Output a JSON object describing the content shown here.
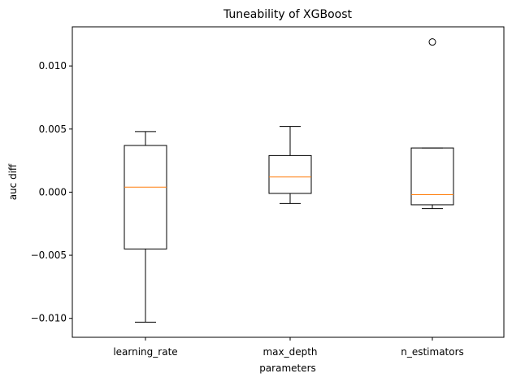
{
  "chart_data": {
    "type": "boxplot",
    "title": "Tuneability of XGBoost",
    "xlabel": "parameters",
    "ylabel": "auc diff",
    "ylim": [
      -0.0115,
      0.0131
    ],
    "yticks": [
      -0.01,
      -0.005,
      0.0,
      0.005,
      0.01
    ],
    "ytick_labels": [
      "−0.010",
      "−0.005",
      "0.000",
      "0.005",
      "0.010"
    ],
    "grid": false,
    "categories": [
      "learning_rate",
      "max_depth",
      "n_estimators"
    ],
    "boxes": [
      {
        "name": "learning_rate",
        "whisker_low": -0.0103,
        "q1": -0.0045,
        "median": 0.0004,
        "q3": 0.0037,
        "whisker_high": 0.0048,
        "outliers": []
      },
      {
        "name": "max_depth",
        "whisker_low": -0.0009,
        "q1": -0.0001,
        "median": 0.0012,
        "q3": 0.0029,
        "whisker_high": 0.0052,
        "outliers": []
      },
      {
        "name": "n_estimators",
        "whisker_low": -0.0013,
        "q1": -0.001,
        "median": -0.0002,
        "q3": 0.0035,
        "whisker_high": 0.0035,
        "outliers": [
          0.0119
        ]
      }
    ],
    "colors": {
      "box": "#000000",
      "median": "#ff7f0e",
      "outlier": "#000000"
    }
  }
}
